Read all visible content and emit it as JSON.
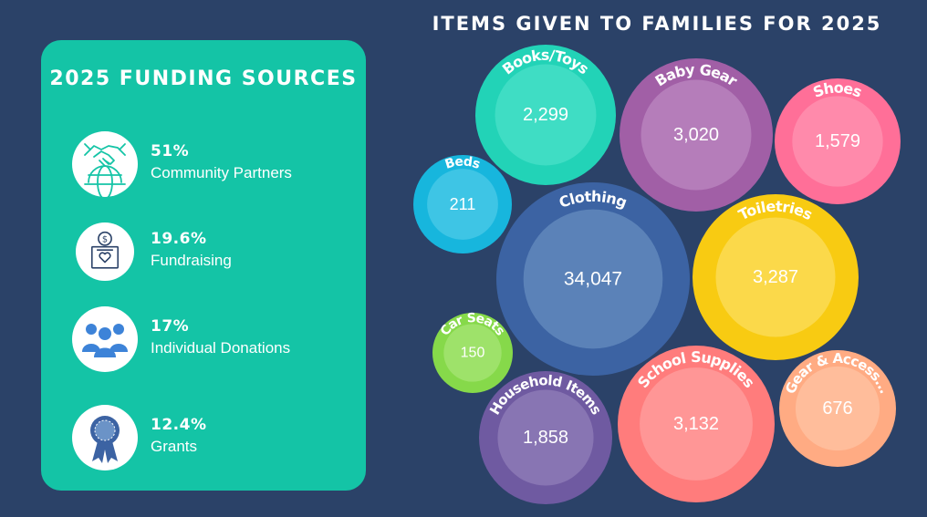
{
  "funding": {
    "title": "2025 FUNDING SOURCES",
    "sources": [
      {
        "percent": "51%",
        "label": "Community Partners",
        "icon": "handshake-globe-icon"
      },
      {
        "percent": "19.6%",
        "label": "Fundraising",
        "icon": "donation-box-icon"
      },
      {
        "percent": "17%",
        "label": "Individual Donations",
        "icon": "people-group-icon"
      },
      {
        "percent": "12.4%",
        "label": "Grants",
        "icon": "award-ribbon-icon"
      }
    ]
  },
  "chart_data": {
    "type": "bubble",
    "title": "ITEMS GIVEN TO FAMILIES FOR 2025",
    "items": [
      {
        "name": "Books/Toys",
        "value": 2299,
        "label": "2,299",
        "color": "#22d3b7",
        "inner": "#3fddc4"
      },
      {
        "name": "Baby Gear",
        "value": 3020,
        "label": "3,020",
        "color": "#a15fa6",
        "inner": "#b57dba"
      },
      {
        "name": "Shoes",
        "value": 1579,
        "label": "1,579",
        "color": "#ff6f98",
        "inner": "#ff8aab"
      },
      {
        "name": "Beds",
        "value": 211,
        "label": "211",
        "color": "#17b6dd",
        "inner": "#3ec5e5"
      },
      {
        "name": "Clothing",
        "value": 34047,
        "label": "34,047",
        "color": "#3c63a3",
        "inner": "#5b82b8"
      },
      {
        "name": "Toiletries",
        "value": 3287,
        "label": "3,287",
        "color": "#f8cb12",
        "inner": "#fbd94a"
      },
      {
        "name": "Car Seats",
        "value": 150,
        "label": "150",
        "color": "#86d94a",
        "inner": "#9ee26a"
      },
      {
        "name": "Household Items",
        "value": 1858,
        "label": "1,858",
        "color": "#6f5aa1",
        "inner": "#8875b3"
      },
      {
        "name": "School Supplies",
        "value": 3132,
        "label": "3,132",
        "color": "#ff7c7c",
        "inner": "#ff9696"
      },
      {
        "name": "Gear & Access...",
        "value": 676,
        "label": "676",
        "color": "#ffab83",
        "inner": "#ffbd9b"
      }
    ]
  }
}
